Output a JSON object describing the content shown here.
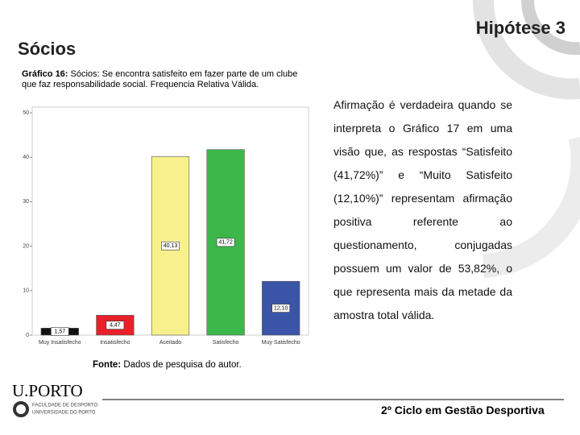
{
  "header": {
    "title": "Sócios",
    "topic": "Hipótese 3"
  },
  "caption": {
    "label": "Gráfico 16:",
    "text": "Sócios: Se encontra satisfeito em fazer parte de um clube que faz responsabilidade social. Frequencia Relativa Válida."
  },
  "chart_data": {
    "type": "bar",
    "categories": [
      "Muy Insatisfecho",
      "Insatisfecho",
      "Aceitado",
      "Satisfecho",
      "Muy Satisfecho"
    ],
    "values": [
      1.57,
      4.47,
      40.13,
      41.72,
      12.1
    ],
    "value_labels": [
      "1,57",
      "4,47",
      "40,13",
      "41,72",
      "12,10"
    ],
    "colors": [
      "#111111",
      "#e8202a",
      "#f7f08c",
      "#3cb84a",
      "#3a55a8"
    ],
    "ylim": [
      0,
      50
    ],
    "yticks": [
      0,
      10,
      20,
      30,
      40,
      50
    ]
  },
  "body": {
    "paragraph": "Afirmação é verdadeira quando se interpreta o Gráfico 17 em uma visão que, as respostas “Satisfeito (41,72%)” e “Muito Satisfeito (12,10%)” representam afirmação positiva referente ao questionamento, conjugadas possuem um valor de 53,82%, o que representa mais da metade da amostra total válida."
  },
  "source": {
    "label": "Fonte:",
    "text": "Dados de pesquisa do autor."
  },
  "logo": {
    "name": "U.PORTO",
    "line1": "FACULDADE DE DESPORTO",
    "line2": "UNIVERSIDADE DO PORTO"
  },
  "footer": {
    "text": "2º Ciclo em Gestão Desportiva"
  }
}
